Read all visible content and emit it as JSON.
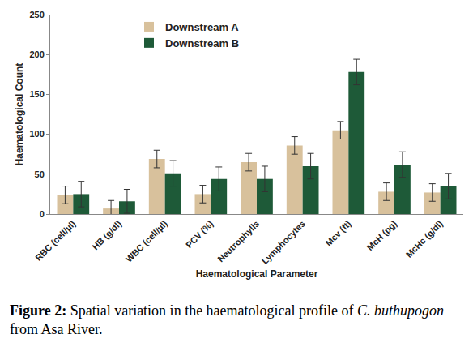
{
  "chart_data": {
    "type": "bar",
    "x_label": "Haematological Parameter",
    "y_label": "Haematological Count",
    "categories": [
      "RBC (cell/µl)",
      "HB (g/dl)",
      "WBC (cell/µl)",
      "PCV (%)",
      "Neutrophylls",
      "Lymphocytes",
      "Mcv (ft)",
      "McH (pg)",
      "McHc (g/dl)"
    ],
    "series": [
      {
        "name": "Downstream A",
        "color": "#d8c19c",
        "values": [
          24,
          7,
          69,
          25,
          65,
          86,
          105,
          28,
          27
        ],
        "errors": [
          11,
          10,
          11,
          11,
          11,
          11,
          11,
          11,
          11
        ]
      },
      {
        "name": "Downstream B",
        "color": "#1e5a38",
        "values": [
          25,
          16,
          51,
          44,
          44,
          60,
          178,
          62,
          35
        ],
        "errors": [
          16,
          15,
          16,
          15,
          16,
          16,
          16,
          16,
          16
        ]
      }
    ],
    "ylim": [
      0,
      250
    ],
    "yticks": [
      0,
      50,
      100,
      150,
      200,
      250
    ],
    "grid": false,
    "legend": "top-left"
  },
  "caption": {
    "label": "Figure 2:",
    "text": "Spatial variation in the haematological profile of",
    "species": "C. buthupogon",
    "rest": "from Asa River."
  }
}
